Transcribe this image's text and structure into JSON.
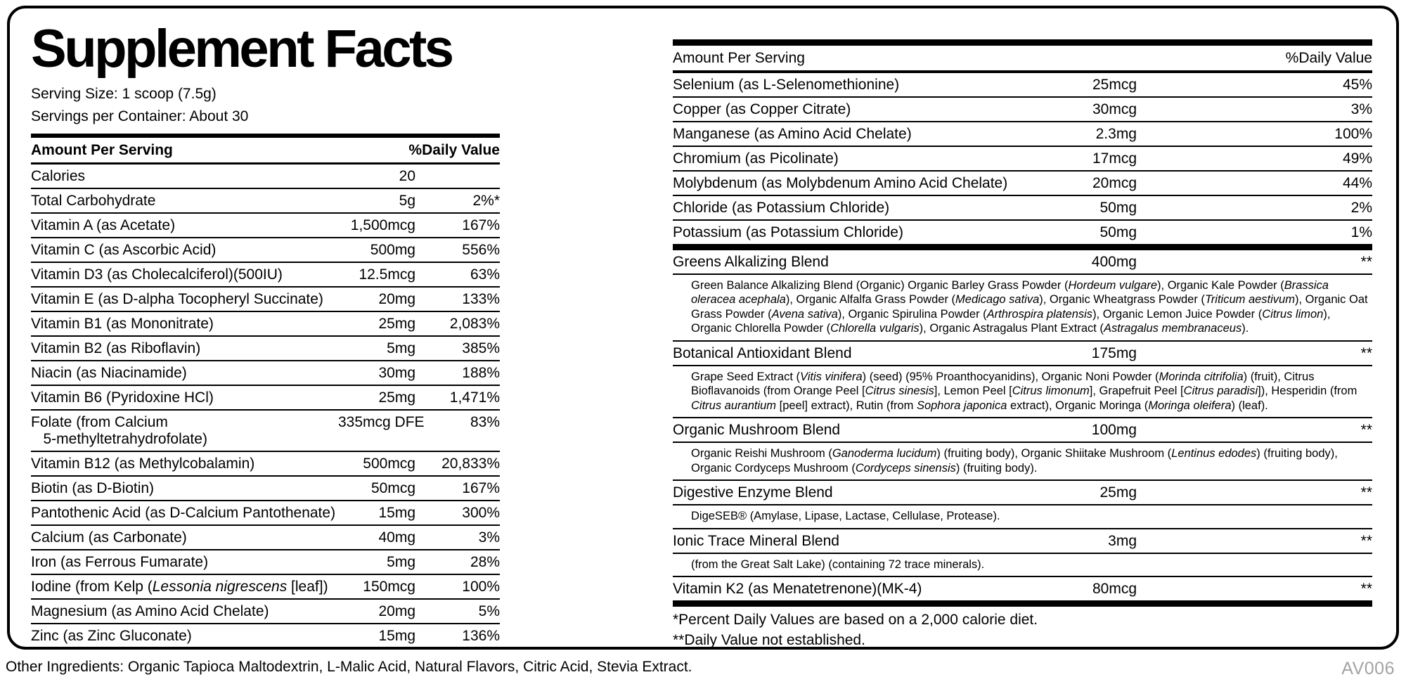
{
  "label": {
    "title": "Supplement Facts",
    "serving_size": "Serving Size: 1 scoop (7.5g)",
    "servings_per_container": "Servings per Container: About 30",
    "col_headers": {
      "amount": "Amount Per Serving",
      "dv": "%Daily Value"
    }
  },
  "left_rows": [
    {
      "name": "Calories",
      "amount": "20",
      "dv": ""
    },
    {
      "name": "Total Carbohydrate",
      "amount": "5g",
      "dv": "2%*"
    },
    {
      "name": "Vitamin A (as Acetate)",
      "amount": "1,500mcg",
      "dv": "167%"
    },
    {
      "name": "Vitamin C (as Ascorbic Acid)",
      "amount": "500mg",
      "dv": "556%"
    },
    {
      "name": "Vitamin D3 (as Cholecalciferol)(500IU)",
      "amount": "12.5mcg",
      "dv": "63%"
    },
    {
      "name": "Vitamin E (as D-alpha Tocopheryl Succinate)",
      "amount": "20mg",
      "dv": "133%"
    },
    {
      "name": "Vitamin B1 (as Mononitrate)",
      "amount": "25mg",
      "dv": "2,083%"
    },
    {
      "name": "Vitamin B2 (as Riboflavin)",
      "amount": "5mg",
      "dv": "385%"
    },
    {
      "name": "Niacin (as Niacinamide)",
      "amount": "30mg",
      "dv": "188%"
    },
    {
      "name": "Vitamin B6 (Pyridoxine HCl)",
      "amount": "25mg",
      "dv": "1,471%"
    },
    {
      "name": "Folate (from Calcium\n   5-methyltetrahydrofolate)",
      "amount": "335mcg DFE",
      "dv": "83%"
    },
    {
      "name": "Vitamin B12 (as Methylcobalamin)",
      "amount": "500mcg",
      "dv": "20,833%"
    },
    {
      "name": "Biotin (as D-Biotin)",
      "amount": "50mcg",
      "dv": "167%"
    },
    {
      "name": "Pantothenic Acid (as D-Calcium Pantothenate)",
      "amount": "15mg",
      "dv": "300%"
    },
    {
      "name": "Calcium (as Carbonate)",
      "amount": "40mg",
      "dv": "3%"
    },
    {
      "name": "Iron (as Ferrous Fumarate)",
      "amount": "5mg",
      "dv": "28%"
    },
    {
      "name": "Iodine (from Kelp ({{Lessonia nigrescens}} [leaf])",
      "amount": "150mcg",
      "dv": "100%"
    },
    {
      "name": "Magnesium (as Amino Acid Chelate)",
      "amount": "20mg",
      "dv": "5%"
    },
    {
      "name": "Zinc (as Zinc Gluconate)",
      "amount": "15mg",
      "dv": "136%"
    }
  ],
  "right_rows": [
    {
      "name": "Selenium (as L-Selenomethionine)",
      "amount": "25mcg",
      "dv": "45%"
    },
    {
      "name": "Copper (as Copper Citrate)",
      "amount": "30mcg",
      "dv": "3%"
    },
    {
      "name": "Manganese (as Amino Acid Chelate)",
      "amount": "2.3mg",
      "dv": "100%"
    },
    {
      "name": "Chromium (as Picolinate)",
      "amount": "17mcg",
      "dv": "49%"
    },
    {
      "name": "Molybdenum (as Molybdenum Amino Acid Chelate)",
      "amount": "20mcg",
      "dv": "44%"
    },
    {
      "name": "Chloride (as Potassium Chloride)",
      "amount": "50mg",
      "dv": "2%"
    },
    {
      "name": "Potassium (as Potassium Chloride)",
      "amount": "50mg",
      "dv": "1%"
    }
  ],
  "blends": [
    {
      "name": "Greens Alkalizing Blend",
      "amount": "400mg",
      "dv": "**",
      "desc": "Green Balance Alkalizing Blend (Organic) Organic Barley Grass Powder ({{Hordeum vulgare}}), Organic Kale Powder ({{Brassica oleracea acephala}}), Organic Alfalfa Grass Powder ({{Medicago sativa}}), Organic Wheatgrass Powder ({{Triticum aestivum}}), Organic Oat Grass Powder ({{Avena sativa}}), Organic Spirulina Powder ({{Arthrospira platensis}}), Organic Lemon Juice Powder ({{Citrus limon}}), Organic Chlorella Powder ({{Chlorella vulgaris}}), Organic Astragalus Plant Extract ({{Astragalus membranaceus}})."
    },
    {
      "name": "Botanical Antioxidant Blend",
      "amount": "175mg",
      "dv": "**",
      "desc": "Grape Seed Extract ({{Vitis vinifera}}) (seed) (95% Proanthocyanidins), Organic Noni Powder ({{Morinda citrifolia}}) (fruit), Citrus Bioflavanoids (from Orange Peel [{{Citrus sinesis}}], Lemon Peel [{{Citrus limonum}}], Grapefruit Peel [{{Citrus paradisi}}]), Hesperidin (from {{Citrus aurantium}} [peel] extract), Rutin (from {{Sophora japonica}} extract), Organic Moringa ({{Moringa oleifera}}) (leaf)."
    },
    {
      "name": "Organic Mushroom Blend",
      "amount": "100mg",
      "dv": "**",
      "desc": "Organic Reishi Mushroom ({{Ganoderma lucidum}}) (fruiting body), Organic Shiitake Mushroom ({{Lentinus edodes}}) (fruiting body), Organic Cordyceps Mushroom ({{Cordyceps sinensis}}) (fruiting body)."
    },
    {
      "name": "Digestive Enzyme Blend",
      "amount": "25mg",
      "dv": "**",
      "desc": "DigeSEB® (Amylase, Lipase, Lactase, Cellulase, Protease)."
    },
    {
      "name": "Ionic Trace Mineral Blend",
      "amount": "3mg",
      "dv": "**",
      "desc": "(from the Great Salt Lake) (containing 72 trace minerals)."
    },
    {
      "name": "Vitamin K2 (as Menatetrenone)(MK-4)",
      "amount": "80mcg",
      "dv": "**",
      "desc": ""
    }
  ],
  "footnotes": [
    "*Percent Daily Values are based on a 2,000 calorie diet.",
    "**Daily Value not established."
  ],
  "other_ingredients": "Other Ingredients: Organic Tapioca Maltodextrin, L-Malic Acid, Natural Flavors, Citric Acid, Stevia Extract.",
  "code": "AV006"
}
